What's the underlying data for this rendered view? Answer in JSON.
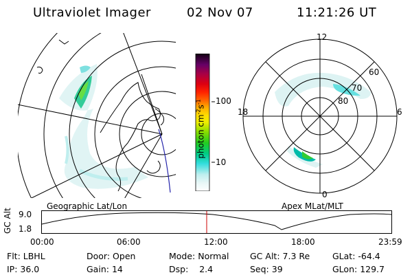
{
  "header": {
    "instrument": "Ultraviolet Imager",
    "date": "02 Nov 07",
    "time": "11:21:26 UT"
  },
  "left_map": {
    "caption": "Geographic Lat/Lon",
    "projection": "geographic"
  },
  "right_map": {
    "caption": "Apex MLat/MLT",
    "mlt_labels": [
      "12",
      "18",
      "6",
      "0"
    ],
    "lat_labels": [
      "60",
      "70",
      "80"
    ]
  },
  "colorbar": {
    "label": "photon cm",
    "label_exp1": "-2",
    "label_mid": "s",
    "label_exp2": "-1",
    "ticks": [
      "100",
      "10"
    ],
    "scale": "log",
    "colors": [
      "#ffffff",
      "#ccf2f2",
      "#66e0e0",
      "#00cccc",
      "#00cc66",
      "#33cc00",
      "#99e600",
      "#e6f000",
      "#ffcc00",
      "#ff9900",
      "#ff4400",
      "#e60000",
      "#b3003c",
      "#660066",
      "#330033",
      "#000000"
    ]
  },
  "altitude_plot": {
    "ylabel": "GC Alt",
    "yticks": [
      "9.0",
      "1.8"
    ],
    "xticks": [
      "00:00",
      "06:00",
      "12:00",
      "18:00",
      "23:59"
    ],
    "current_time_marker": "11:21"
  },
  "info": {
    "filter_label": "Flt:",
    "filter_value": "LBHL",
    "ip_label": "IP:",
    "ip_value": "36.0",
    "door_label": "Door:",
    "door_value": "Open",
    "gain_label": "Gain:",
    "gain_value": "14",
    "mode_label": "Mode:",
    "mode_value": "Normal",
    "dsp_label": "Dsp:",
    "dsp_value": "2.4",
    "gcalt_label": "GC Alt:",
    "gcalt_value": "7.3 Re",
    "seq_label": "Seq:",
    "seq_value": "39",
    "glat_label": "GLat:",
    "glat_value": "-64.4",
    "glon_label": "GLon:",
    "glon_value": "129.7"
  },
  "style": {
    "trace_color": "#000000",
    "marker_color": "#cc0000",
    "grid_color": "#000000"
  }
}
